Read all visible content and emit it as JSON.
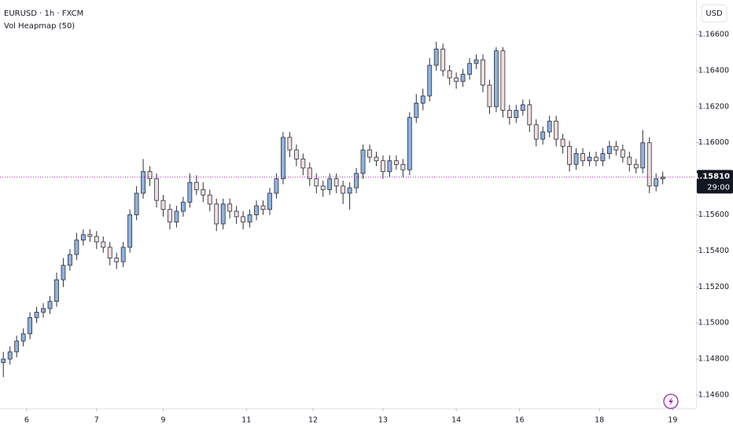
{
  "chart_data": {
    "type": "candlestick",
    "symbol": "EURUSD · 1h · FXCM",
    "indicator": "Vol Heapmap (50)",
    "currency": "USD",
    "up_color": "#8fb3e0",
    "down_color": "#f2dede",
    "line_color": "#2a2e39",
    "ylim": [
      1.14526,
      1.16792
    ],
    "xlim": [
      -0.5,
      104
    ],
    "yticks": [
      {
        "value": 1.146,
        "label": "1.14600"
      },
      {
        "value": 1.148,
        "label": "1.14800"
      },
      {
        "value": 1.15,
        "label": "1.15000"
      },
      {
        "value": 1.152,
        "label": "1.15200"
      },
      {
        "value": 1.154,
        "label": "1.15400"
      },
      {
        "value": 1.156,
        "label": "1.15600"
      },
      {
        "value": 1.158,
        "label": "1.15800"
      },
      {
        "value": 1.16,
        "label": "1.16000"
      },
      {
        "value": 1.162,
        "label": "1.16200"
      },
      {
        "value": 1.164,
        "label": "1.16400"
      },
      {
        "value": 1.166,
        "label": "1.16600"
      }
    ],
    "xticks": [
      {
        "value": 3.5,
        "label": "6"
      },
      {
        "value": 14,
        "label": "7"
      },
      {
        "value": 24,
        "label": "9"
      },
      {
        "value": 36.5,
        "label": "11"
      },
      {
        "value": 46.5,
        "label": "12"
      },
      {
        "value": 57,
        "label": "13"
      },
      {
        "value": 68,
        "label": "14"
      },
      {
        "value": 77.5,
        "label": "16"
      },
      {
        "value": 89.5,
        "label": "18"
      },
      {
        "value": 100.5,
        "label": "19"
      }
    ],
    "last_price": {
      "value": 1.1581,
      "label": "1.15810"
    },
    "countdown": "29:00",
    "open": [
      1.1478,
      1.148,
      1.1484,
      1.149,
      1.1494,
      1.1503,
      1.1506,
      1.1508,
      1.1512,
      1.1524,
      1.1532,
      1.1538,
      1.1546,
      1.1549,
      1.1548,
      1.1545,
      1.1542,
      1.1536,
      1.1534,
      1.1542,
      1.156,
      1.1572,
      1.1584,
      1.158,
      1.1568,
      1.1563,
      1.1556,
      1.1562,
      1.1567,
      1.1578,
      1.1574,
      1.1571,
      1.1566,
      1.1555,
      1.1566,
      1.1562,
      1.1559,
      1.1556,
      1.156,
      1.1565,
      1.1563,
      1.1572,
      1.158,
      1.1603,
      1.1596,
      1.1591,
      1.1586,
      1.158,
      1.1576,
      1.1574,
      1.158,
      1.1576,
      1.1572,
      1.1575,
      1.1583,
      1.1596,
      1.1592,
      1.159,
      1.1584,
      1.159,
      1.1588,
      1.1585,
      1.1614,
      1.1622,
      1.1626,
      1.1643,
      1.1652,
      1.164,
      1.1636,
      1.1634,
      1.1638,
      1.1644,
      1.1646,
      1.1632,
      1.162,
      1.1651,
      1.1618,
      1.1614,
      1.1618,
      1.1621,
      1.161,
      1.1602,
      1.1606,
      1.1612,
      1.1602,
      1.1598,
      1.1588,
      1.1594,
      1.159,
      1.1592,
      1.159,
      1.1594,
      1.1598,
      1.1596,
      1.1592,
      1.1588,
      1.1586,
      1.16,
      1.1576,
      1.158
    ],
    "high": [
      1.1484,
      1.1487,
      1.1493,
      1.1497,
      1.1506,
      1.1509,
      1.1511,
      1.1515,
      1.1528,
      1.1536,
      1.1541,
      1.155,
      1.1552,
      1.1552,
      1.1551,
      1.1548,
      1.1545,
      1.1539,
      1.1545,
      1.1563,
      1.1576,
      1.1591,
      1.1587,
      1.1583,
      1.1571,
      1.1566,
      1.1565,
      1.157,
      1.1583,
      1.1582,
      1.1578,
      1.1574,
      1.1569,
      1.1569,
      1.1569,
      1.1565,
      1.1562,
      1.1563,
      1.1568,
      1.1568,
      1.1575,
      1.1583,
      1.1606,
      1.1606,
      1.1599,
      1.1594,
      1.1589,
      1.1583,
      1.1579,
      1.1583,
      1.1583,
      1.1579,
      1.1578,
      1.1586,
      1.1599,
      1.1599,
      1.1595,
      1.1593,
      1.1593,
      1.1593,
      1.1591,
      1.1617,
      1.1627,
      1.163,
      1.1647,
      1.1656,
      1.1655,
      1.1643,
      1.1639,
      1.1641,
      1.1647,
      1.1649,
      1.1649,
      1.1635,
      1.1653,
      1.1653,
      1.1621,
      1.1621,
      1.1624,
      1.1624,
      1.1613,
      1.1609,
      1.1615,
      1.1615,
      1.1605,
      1.1601,
      1.1597,
      1.1597,
      1.1595,
      1.1595,
      1.1597,
      1.1601,
      1.1601,
      1.1599,
      1.1595,
      1.1591,
      1.1607,
      1.1603,
      1.1583,
      1.1584
    ],
    "low": [
      1.147,
      1.1477,
      1.1481,
      1.1487,
      1.1491,
      1.15,
      1.1503,
      1.1505,
      1.1509,
      1.152,
      1.1529,
      1.1535,
      1.1543,
      1.1545,
      1.1541,
      1.1539,
      1.1532,
      1.153,
      1.1531,
      1.1539,
      1.1557,
      1.1569,
      1.1576,
      1.1564,
      1.1559,
      1.1552,
      1.1553,
      1.1559,
      1.1564,
      1.1571,
      1.1567,
      1.1562,
      1.1551,
      1.1552,
      1.1558,
      1.1555,
      1.1552,
      1.1553,
      1.1557,
      1.156,
      1.156,
      1.1569,
      1.1577,
      1.1592,
      1.1587,
      1.1582,
      1.1576,
      1.1572,
      1.157,
      1.1571,
      1.1572,
      1.1566,
      1.1563,
      1.1572,
      1.158,
      1.1589,
      1.1587,
      1.158,
      1.1581,
      1.1585,
      1.1581,
      1.1582,
      1.1611,
      1.1618,
      1.1623,
      1.164,
      1.1637,
      1.1632,
      1.163,
      1.1631,
      1.1635,
      1.1641,
      1.1628,
      1.1616,
      1.1617,
      1.1614,
      1.161,
      1.1611,
      1.1615,
      1.1606,
      1.1598,
      1.1599,
      1.1603,
      1.1598,
      1.1594,
      1.1584,
      1.1585,
      1.1587,
      1.1587,
      1.1587,
      1.1587,
      1.1591,
      1.1593,
      1.1589,
      1.1584,
      1.1583,
      1.1583,
      1.1572,
      1.1573,
      1.1577
    ],
    "close": [
      1.148,
      1.1484,
      1.149,
      1.1494,
      1.1503,
      1.1506,
      1.1508,
      1.1512,
      1.1524,
      1.1532,
      1.1538,
      1.1546,
      1.1549,
      1.1548,
      1.1545,
      1.1542,
      1.1536,
      1.1534,
      1.1542,
      1.156,
      1.1572,
      1.1584,
      1.158,
      1.1568,
      1.1563,
      1.1556,
      1.1562,
      1.1567,
      1.1578,
      1.1574,
      1.1571,
      1.1566,
      1.1555,
      1.1566,
      1.1562,
      1.1559,
      1.1556,
      1.156,
      1.1565,
      1.1563,
      1.1572,
      1.158,
      1.1603,
      1.1596,
      1.1591,
      1.1586,
      1.158,
      1.1576,
      1.1574,
      1.158,
      1.1576,
      1.1572,
      1.1575,
      1.1583,
      1.1596,
      1.1592,
      1.159,
      1.1584,
      1.159,
      1.1588,
      1.1585,
      1.1614,
      1.1622,
      1.1626,
      1.1643,
      1.1652,
      1.164,
      1.1636,
      1.1634,
      1.1638,
      1.1644,
      1.1646,
      1.1632,
      1.162,
      1.1651,
      1.1618,
      1.1614,
      1.1618,
      1.1621,
      1.161,
      1.1602,
      1.1606,
      1.1612,
      1.1602,
      1.1598,
      1.1588,
      1.1594,
      1.159,
      1.1592,
      1.159,
      1.1594,
      1.1598,
      1.1596,
      1.1592,
      1.1588,
      1.1586,
      1.16,
      1.1576,
      1.158,
      1.1581
    ]
  }
}
